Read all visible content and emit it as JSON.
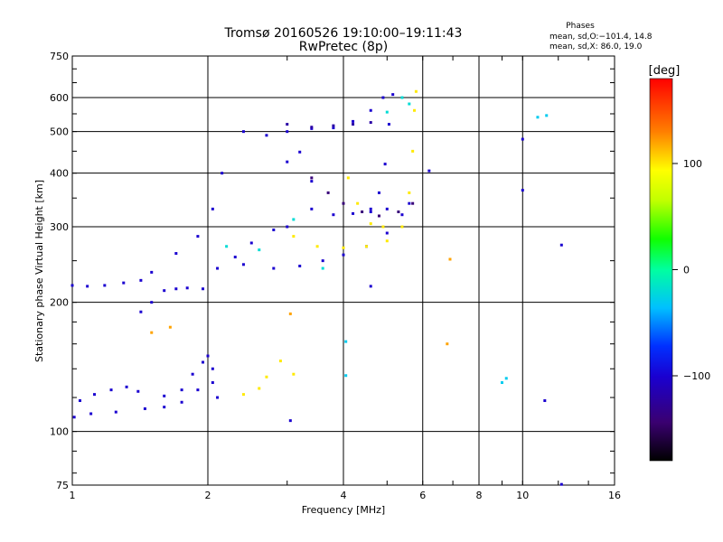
{
  "chart_data": {
    "type": "scatter",
    "title": "Tromsø 20160526 19:10:00–19:11:43",
    "subtitle": "RwPretec (8p)",
    "xlabel": "Frequency [MHz]",
    "ylabel": "Stationary phase Virtual Height [km]",
    "x_scale": "log",
    "y_scale": "log",
    "xlim": [
      1,
      16
    ],
    "ylim": [
      75,
      750
    ],
    "x_ticks": [
      1,
      2,
      4,
      6,
      8,
      10,
      16
    ],
    "x_tick_labels": [
      "1",
      "2",
      "4",
      "6",
      "8",
      "10",
      "16"
    ],
    "y_ticks": [
      75,
      100,
      200,
      300,
      400,
      500,
      600,
      750
    ],
    "y_tick_labels": [
      "75",
      "100",
      "200",
      "300",
      "400",
      "500",
      "600",
      "750"
    ],
    "grid": true,
    "phases_legend": {
      "heading": "Phases",
      "line_o": "mean, sd,O:−101.4, 14.8",
      "line_x": "mean, sd,X:  86.0, 19.0"
    },
    "colorbar": {
      "label": "[deg]",
      "range": [
        -180,
        180
      ],
      "ticks": [
        100,
        0,
        -100
      ],
      "tick_labels": [
        "100",
        "0",
        "−100"
      ]
    },
    "series": [
      {
        "phase": -100,
        "points": [
          [
            1.01,
            108
          ],
          [
            1.1,
            110
          ],
          [
            1.25,
            111
          ],
          [
            1.45,
            113
          ],
          [
            1.6,
            114
          ],
          [
            1.75,
            117
          ],
          [
            1.9,
            125
          ],
          [
            2.05,
            130
          ]
        ]
      },
      {
        "phase": -100,
        "points": [
          [
            1.04,
            118
          ],
          [
            1.12,
            122
          ],
          [
            1.22,
            125
          ],
          [
            1.32,
            127
          ],
          [
            1.4,
            124
          ]
        ]
      },
      {
        "phase": -100,
        "points": [
          [
            1.0,
            219
          ],
          [
            1.08,
            218
          ],
          [
            1.18,
            219
          ],
          [
            1.3,
            222
          ],
          [
            1.42,
            225
          ],
          [
            1.5,
            235
          ]
        ]
      },
      {
        "phase": -100,
        "points": [
          [
            1.42,
            190
          ],
          [
            1.5,
            200
          ],
          [
            1.6,
            213
          ],
          [
            1.7,
            215
          ],
          [
            1.8,
            216
          ]
        ]
      },
      {
        "phase": -100,
        "points": [
          [
            1.6,
            121
          ],
          [
            1.75,
            125
          ],
          [
            1.85,
            136
          ],
          [
            1.95,
            145
          ],
          [
            2.0,
            150
          ],
          [
            2.05,
            140
          ],
          [
            2.1,
            120
          ]
        ]
      },
      {
        "phase": -100,
        "points": [
          [
            1.95,
            215
          ],
          [
            2.1,
            240
          ],
          [
            2.3,
            255
          ],
          [
            2.5,
            275
          ],
          [
            2.8,
            295
          ],
          [
            3.0,
            300
          ]
        ]
      },
      {
        "phase": -100,
        "points": [
          [
            2.4,
            245
          ],
          [
            2.8,
            240
          ],
          [
            3.2,
            243
          ],
          [
            3.6,
            250
          ],
          [
            4.0,
            258
          ],
          [
            4.5,
            270
          ],
          [
            5.0,
            290
          ],
          [
            5.4,
            320
          ],
          [
            5.6,
            340
          ]
        ]
      },
      {
        "phase": -100,
        "points": [
          [
            2.4,
            500
          ],
          [
            2.7,
            490
          ],
          [
            3.0,
            500
          ],
          [
            3.4,
            508
          ],
          [
            3.8,
            510
          ],
          [
            4.2,
            528
          ],
          [
            4.6,
            560
          ],
          [
            4.9,
            600
          ]
        ]
      },
      {
        "phase": -100,
        "points": [
          [
            3.4,
            330
          ],
          [
            3.8,
            320
          ],
          [
            4.2,
            322
          ],
          [
            4.6,
            325
          ],
          [
            5.0,
            330
          ]
        ]
      },
      {
        "phase": -100,
        "points": [
          [
            4.6,
            330
          ],
          [
            4.8,
            360
          ],
          [
            4.95,
            420
          ],
          [
            5.05,
            520
          ],
          [
            5.15,
            610
          ]
        ]
      },
      {
        "phase": -120,
        "points": [
          [
            3.0,
            520
          ],
          [
            3.4,
            512
          ],
          [
            3.8,
            516
          ],
          [
            4.2,
            520
          ],
          [
            4.6,
            525
          ]
        ]
      },
      {
        "phase": -140,
        "points": [
          [
            3.4,
            390
          ],
          [
            3.7,
            360
          ],
          [
            4.0,
            340
          ],
          [
            4.4,
            325
          ],
          [
            4.8,
            318
          ],
          [
            5.3,
            325
          ],
          [
            5.7,
            340
          ]
        ]
      },
      {
        "phase": 100,
        "points": [
          [
            3.1,
            285
          ],
          [
            3.5,
            270
          ],
          [
            4.0,
            268
          ],
          [
            4.5,
            270
          ],
          [
            5.0,
            278
          ],
          [
            5.4,
            300
          ],
          [
            5.6,
            360
          ],
          [
            5.7,
            450
          ],
          [
            5.75,
            560
          ],
          [
            5.8,
            620
          ]
        ]
      },
      {
        "phase": 100,
        "points": [
          [
            4.1,
            390
          ],
          [
            4.3,
            340
          ],
          [
            4.6,
            305
          ],
          [
            4.9,
            300
          ]
        ]
      },
      {
        "phase": 100,
        "points": [
          [
            2.4,
            122
          ],
          [
            2.6,
            126
          ],
          [
            2.7,
            134
          ],
          [
            2.9,
            146
          ],
          [
            3.1,
            136
          ]
        ]
      },
      {
        "phase": -20,
        "points": [
          [
            5.0,
            555
          ],
          [
            5.4,
            600
          ],
          [
            5.6,
            580
          ],
          [
            2.2,
            270
          ],
          [
            2.6,
            265
          ],
          [
            3.1,
            312
          ],
          [
            3.6,
            240
          ]
        ]
      },
      {
        "phase": -100,
        "points": [
          [
            1.7,
            260
          ],
          [
            1.9,
            285
          ],
          [
            2.05,
            330
          ],
          [
            2.15,
            400
          ],
          [
            3.0,
            425
          ],
          [
            3.2,
            448
          ],
          [
            3.4,
            383
          ]
        ]
      },
      {
        "phase": 120,
        "points": [
          [
            1.5,
            170
          ],
          [
            1.65,
            175
          ],
          [
            3.05,
            188
          ],
          [
            6.8,
            160
          ],
          [
            6.9,
            252
          ]
        ]
      },
      {
        "phase": -30,
        "points": [
          [
            4.05,
            162
          ],
          [
            4.05,
            135
          ],
          [
            9.0,
            130
          ],
          [
            9.2,
            133
          ],
          [
            10.8,
            540
          ],
          [
            11.3,
            545
          ]
        ]
      },
      {
        "phase": -100,
        "points": [
          [
            10.0,
            480
          ],
          [
            10.0,
            365
          ],
          [
            6.2,
            405
          ],
          [
            11.2,
            118
          ],
          [
            12.2,
            272
          ],
          [
            12.2,
            75.3
          ],
          [
            3.05,
            106
          ],
          [
            4.6,
            218
          ]
        ]
      }
    ]
  }
}
